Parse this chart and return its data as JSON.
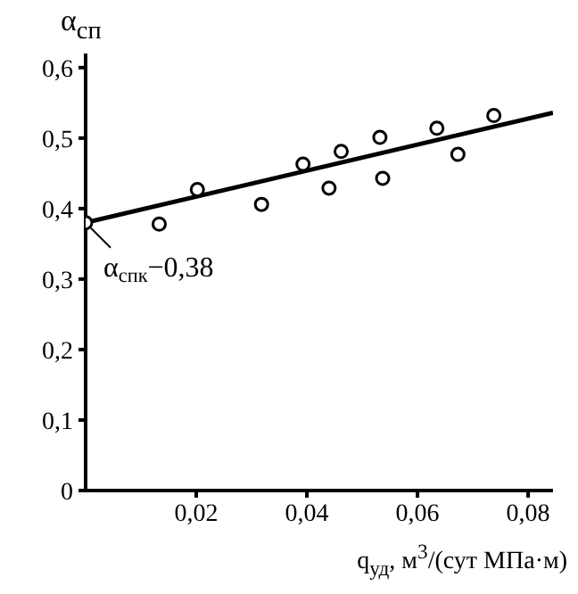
{
  "chart_data": {
    "type": "scatter",
    "ylabel": "α$_{сп}$",
    "xlabel": "q$_{уд}$, м$^{3}$/(сут МПа·м)",
    "xlim": [
      0,
      0.0845
    ],
    "xticks": [
      {
        "value": 0.02,
        "label": "0,02"
      },
      {
        "value": 0.04,
        "label": "0,04"
      },
      {
        "value": 0.06,
        "label": "0,06"
      },
      {
        "value": 0.08,
        "label": "0,08"
      }
    ],
    "ylim": [
      0,
      0.62
    ],
    "yticks": [
      {
        "value": 0,
        "label": "0"
      },
      {
        "value": 0.1,
        "label": "0,1"
      },
      {
        "value": 0.2,
        "label": "0,2"
      },
      {
        "value": 0.3,
        "label": "0,3"
      },
      {
        "value": 0.4,
        "label": "0,4"
      },
      {
        "value": 0.5,
        "label": "0,5"
      },
      {
        "value": 0.6,
        "label": "0,6"
      }
    ],
    "grid": false,
    "legend": false,
    "series": [
      {
        "type": "line",
        "marker": "none",
        "color": "#000000",
        "x": [
          0,
          0.0845
        ],
        "values": [
          0.38,
          0.536
        ]
      },
      {
        "marker": "circle",
        "color": "#000000",
        "x": [
          0.0133,
          0.0202,
          0.0318,
          0.0393,
          0.044,
          0.0462,
          0.0532,
          0.0537,
          0.0635,
          0.0673,
          0.0738
        ],
        "values": [
          0.378,
          0.427,
          0.406,
          0.463,
          0.429,
          0.481,
          0.501,
          0.443,
          0.514,
          0.477,
          0.532
        ]
      },
      {
        "marker": "circle",
        "color": "#000000",
        "x": [
          0
        ],
        "values": [
          0.38
        ]
      }
    ],
    "annotations": [
      {
        "text": "α$_{спк}$−0,38",
        "x": 0,
        "y": 0.38
      }
    ]
  }
}
